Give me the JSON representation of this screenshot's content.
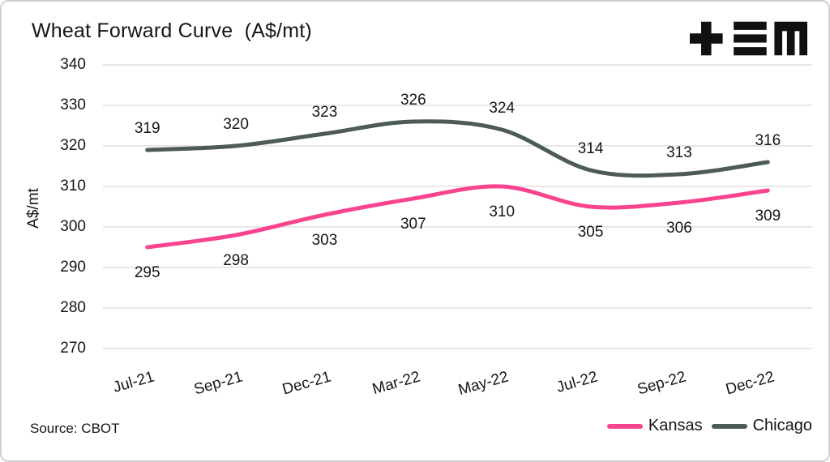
{
  "title": "Wheat Forward Curve  (A$/mt)",
  "source": "Source: CBOT",
  "logo_name": "tem-logo",
  "colors": {
    "kansas": "#F8448F",
    "chicago": "#4C5A58",
    "gridline": "#DFDFDF",
    "text": "#161616",
    "border": "#CDD1D2",
    "background": "#FFFFFF"
  },
  "chart_data": {
    "type": "line",
    "title": "Wheat Forward Curve (A$/mt)",
    "xlabel": "",
    "ylabel": "A$/mt",
    "categories": [
      "Jul-21",
      "Sep-21",
      "Dec-21",
      "Mar-22",
      "May-22",
      "Jul-22",
      "Sep-22",
      "Dec-22"
    ],
    "series": [
      {
        "name": "Kansas",
        "color": "#F8448F",
        "values": [
          295,
          298,
          303,
          307,
          310,
          305,
          306,
          309
        ],
        "label_position": "below"
      },
      {
        "name": "Chicago",
        "color": "#4C5A58",
        "values": [
          319,
          320,
          323,
          326,
          324,
          314,
          313,
          316
        ],
        "label_position": "above"
      }
    ],
    "yticks": [
      270,
      280,
      290,
      300,
      310,
      320,
      330,
      340
    ],
    "ylim": [
      270,
      340
    ],
    "grid": true,
    "smooth": true,
    "legend_position": "bottom-right"
  }
}
